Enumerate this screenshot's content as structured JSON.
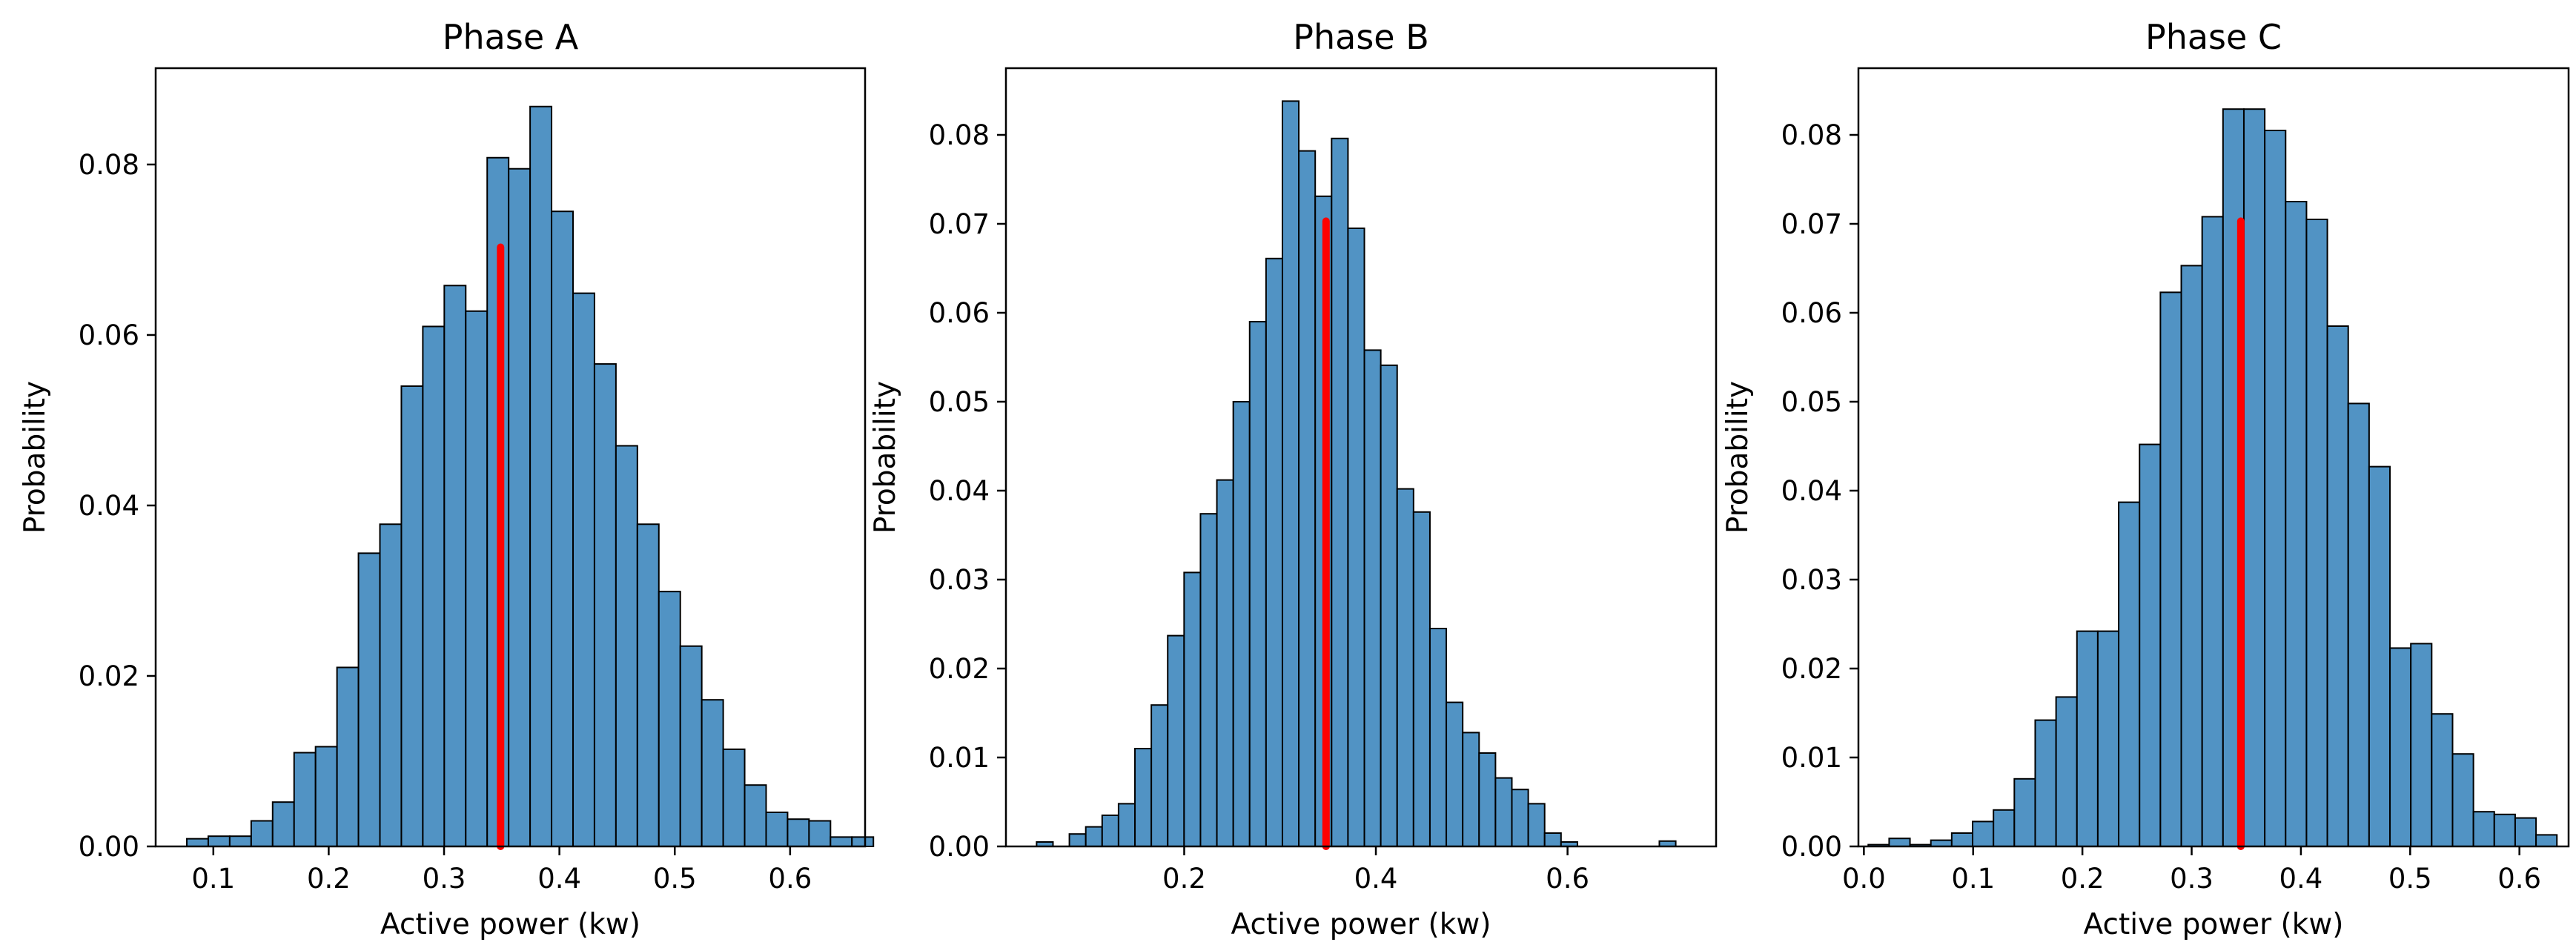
{
  "chart_data": [
    {
      "type": "bar",
      "subtype": "histogram",
      "title": "Phase A",
      "xlabel": "Active power (kw)",
      "ylabel": "Probability",
      "xlim": [
        0.05,
        0.665
      ],
      "ylim": [
        0,
        0.0913
      ],
      "xticks": [
        0.1,
        0.2,
        0.3,
        0.4,
        0.5,
        0.6
      ],
      "xtick_labels": [
        "0.1",
        "0.2",
        "0.3",
        "0.4",
        "0.5",
        "0.6"
      ],
      "yticks": [
        0,
        0.02,
        0.04,
        0.06,
        0.08
      ],
      "ytick_labels": [
        "0.00",
        "0.02",
        "0.04",
        "0.06",
        "0.08"
      ],
      "bin_start": 0.077,
      "bin_width": 0.0186,
      "values": [
        0.0009,
        0.0012,
        0.0012,
        0.003,
        0.0052,
        0.011,
        0.0117,
        0.021,
        0.0344,
        0.0378,
        0.054,
        0.061,
        0.0658,
        0.0628,
        0.0808,
        0.0795,
        0.0868,
        0.0745,
        0.0649,
        0.0566,
        0.047,
        0.0378,
        0.0299,
        0.0235,
        0.0172,
        0.0114,
        0.0072,
        0.004,
        0.0032,
        0.003,
        0.0011,
        0.0011
      ],
      "bar_color": "#5193c4",
      "reference_line": {
        "x": 0.349,
        "y": 0.0703,
        "color": "#ff0000"
      },
      "grid": false
    },
    {
      "type": "bar",
      "subtype": "histogram",
      "title": "Phase B",
      "xlabel": "Active power (kw)",
      "ylabel": "Probability",
      "xlim": [
        0.014,
        0.755
      ],
      "ylim": [
        0,
        0.0875
      ],
      "xticks": [
        0.2,
        0.4,
        0.6
      ],
      "xtick_labels": [
        "0.2",
        "0.4",
        "0.6"
      ],
      "yticks": [
        0,
        0.01,
        0.02,
        0.03,
        0.04,
        0.05,
        0.06,
        0.07,
        0.08
      ],
      "ytick_labels": [
        "0.00",
        "0.01",
        "0.02",
        "0.03",
        "0.04",
        "0.05",
        "0.06",
        "0.07",
        "0.08"
      ],
      "bin_start": 0.046,
      "bin_width": 0.0171,
      "values": [
        0.0005,
        0,
        0.0014,
        0.0022,
        0.0035,
        0.0048,
        0.011,
        0.0159,
        0.0237,
        0.0308,
        0.0374,
        0.0412,
        0.05,
        0.059,
        0.0661,
        0.0838,
        0.0782,
        0.0731,
        0.0796,
        0.0695,
        0.0558,
        0.0541,
        0.0402,
        0.0376,
        0.0245,
        0.0162,
        0.0128,
        0.0105,
        0.0077,
        0.0064,
        0.0048,
        0.0015,
        0.0005,
        0,
        0,
        0,
        0,
        0,
        0.0006
      ],
      "bar_color": "#5193c4",
      "reference_line": {
        "x": 0.348,
        "y": 0.0703,
        "color": "#ff0000"
      },
      "grid": false
    },
    {
      "type": "bar",
      "subtype": "histogram",
      "title": "Phase C",
      "xlabel": "Active power (kw)",
      "ylabel": "Probability",
      "xlim": [
        -0.005,
        0.645
      ],
      "ylim": [
        0,
        0.0875
      ],
      "xticks": [
        0,
        0.1,
        0.2,
        0.3,
        0.4,
        0.5,
        0.6
      ],
      "xtick_labels": [
        "0.0",
        "0.1",
        "0.2",
        "0.3",
        "0.4",
        "0.5",
        "0.6"
      ],
      "yticks": [
        0,
        0.01,
        0.02,
        0.03,
        0.04,
        0.05,
        0.06,
        0.07,
        0.08
      ],
      "ytick_labels": [
        "0.00",
        "0.01",
        "0.02",
        "0.03",
        "0.04",
        "0.05",
        "0.06",
        "0.07",
        "0.08"
      ],
      "bin_start": 0.004,
      "bin_width": 0.0191,
      "values": [
        0.0002,
        0.0009,
        0.0002,
        0.0007,
        0.0015,
        0.0028,
        0.0041,
        0.0076,
        0.0142,
        0.0168,
        0.0242,
        0.0242,
        0.0387,
        0.0452,
        0.0623,
        0.0653,
        0.0708,
        0.0829,
        0.0829,
        0.0805,
        0.0725,
        0.0705,
        0.0585,
        0.0498,
        0.0427,
        0.0223,
        0.0228,
        0.0149,
        0.0104,
        0.0039,
        0.0036,
        0.0032,
        0.0013
      ],
      "bar_color": "#5193c4",
      "reference_line": {
        "x": 0.345,
        "y": 0.0703,
        "color": "#ff0000"
      },
      "grid": false
    }
  ]
}
